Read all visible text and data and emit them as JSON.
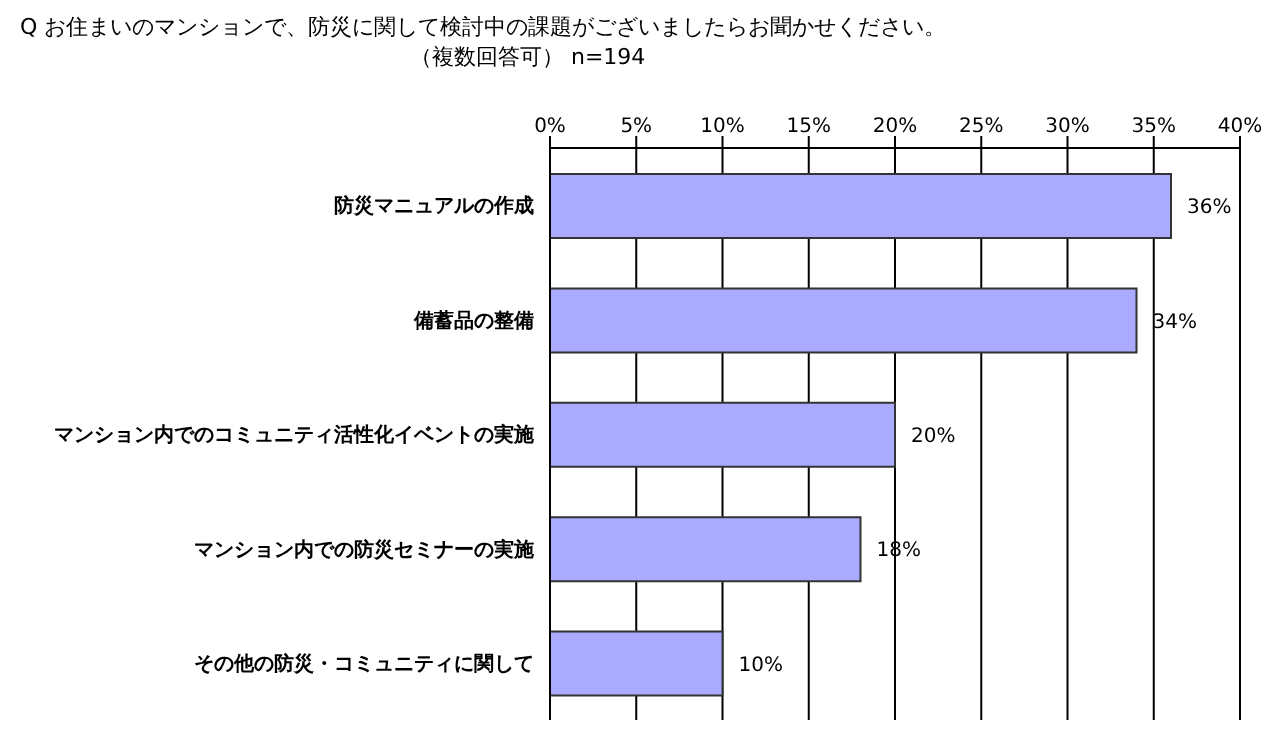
{
  "chart_data": {
    "type": "bar",
    "orientation": "horizontal",
    "title": "Q  お住まいのマンションで、防災に関して検討中の課題がございましたらお聞かせください。",
    "subtitle": "（複数回答可）  n=194",
    "categories": [
      "防災マニュアルの作成",
      "備蓄品の整備",
      "マンション内でのコミュニティ活性化イベントの実施",
      "マンション内での防災セミナーの実施",
      "その他の防災・コミュニティに関して"
    ],
    "values": [
      36,
      34,
      20,
      18,
      10
    ],
    "value_labels": [
      "36%",
      "34%",
      "20%",
      "18%",
      "10%"
    ],
    "color": "#aaaaff",
    "xlim": [
      0,
      40
    ],
    "xticks": [
      {
        "value": 0,
        "label": "0%"
      },
      {
        "value": 5,
        "label": "5%"
      },
      {
        "value": 10,
        "label": "10%"
      },
      {
        "value": 15,
        "label": "15%"
      },
      {
        "value": 20,
        "label": "20%"
      },
      {
        "value": 25,
        "label": "25%"
      },
      {
        "value": 30,
        "label": "30%"
      },
      {
        "value": 35,
        "label": "35%"
      },
      {
        "value": 40,
        "label": "40%"
      }
    ],
    "grid": "x",
    "legend": false
  }
}
